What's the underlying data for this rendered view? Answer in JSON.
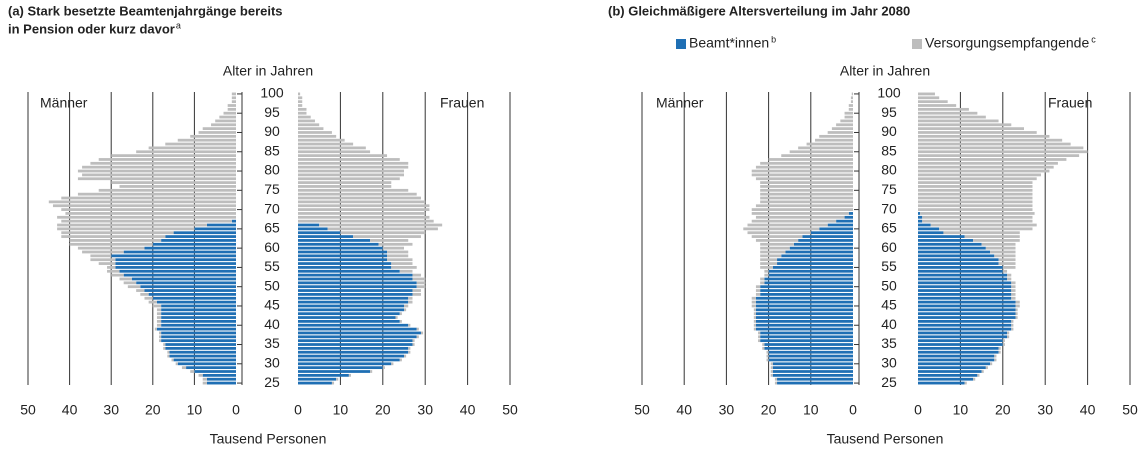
{
  "chart_data": [
    {
      "type": "pyramid",
      "title": [
        "(a) Stark besetzte Beamtenjahrgänge bereits",
        "in Pension oder kurz davor"
      ],
      "title_note": "a",
      "y_label": "Alter in Jahren",
      "x_label": "Tausend Personen",
      "men_label": "Männer",
      "women_label": "Frauen",
      "y": [
        25,
        26,
        27,
        28,
        29,
        30,
        31,
        32,
        33,
        34,
        35,
        36,
        37,
        38,
        39,
        40,
        41,
        42,
        43,
        44,
        45,
        46,
        47,
        48,
        49,
        50,
        51,
        52,
        53,
        54,
        55,
        56,
        57,
        58,
        59,
        60,
        61,
        62,
        63,
        64,
        65,
        66,
        67,
        68,
        69,
        70,
        71,
        72,
        73,
        74,
        75,
        76,
        77,
        78,
        79,
        80,
        81,
        82,
        83,
        84,
        85,
        86,
        87,
        88,
        89,
        90,
        91,
        92,
        93,
        94,
        95,
        96,
        97,
        98,
        99,
        100
      ],
      "ylim": [
        24.5,
        100.5
      ],
      "yticks": [
        25,
        30,
        35,
        40,
        45,
        50,
        55,
        60,
        65,
        70,
        75,
        80,
        85,
        90,
        95,
        100
      ],
      "xlim": [
        0,
        50
      ],
      "xticks": [
        0,
        10,
        20,
        30,
        40,
        50
      ],
      "series": [
        {
          "color": "#1f6fb4",
          "men": [
            7,
            7,
            8,
            10,
            12,
            14,
            15,
            16,
            16,
            17,
            17,
            18,
            18,
            18,
            19,
            18,
            18,
            18,
            18,
            18,
            18,
            19,
            20,
            21,
            22,
            23,
            24,
            25,
            27,
            28,
            29,
            29,
            29,
            30,
            27,
            22,
            20,
            18,
            17,
            15,
            10,
            7,
            1,
            0,
            0,
            0,
            0,
            0,
            0,
            0,
            0,
            0,
            0,
            0,
            0,
            0,
            0,
            0,
            0,
            0,
            0,
            0,
            0,
            0,
            0,
            0,
            0,
            0,
            0,
            0,
            0,
            0,
            0,
            0,
            0,
            0
          ],
          "women": [
            8,
            9,
            12,
            17,
            20,
            22,
            24,
            25,
            26,
            26,
            27,
            27,
            28,
            29,
            28,
            26,
            24,
            23,
            24,
            25,
            25,
            26,
            26,
            27,
            27,
            28,
            28,
            27,
            27,
            24,
            22,
            22,
            21,
            21,
            21,
            20,
            19,
            17,
            13,
            10,
            7,
            5,
            0,
            0,
            0,
            0,
            0,
            0,
            0,
            0,
            0,
            0,
            0,
            0,
            0,
            0,
            0,
            0,
            0,
            0,
            0,
            0,
            0,
            0,
            0,
            0,
            0,
            0,
            0,
            0,
            0,
            0,
            0,
            0,
            0,
            0
          ]
        },
        {
          "color": "#bdbdbd",
          "men": [
            1,
            1,
            1,
            1,
            1,
            0.5,
            0.5,
            0.5,
            0.5,
            0.5,
            0.5,
            0.5,
            0.5,
            0.5,
            0.5,
            1,
            1,
            1,
            1,
            1,
            2,
            2,
            2,
            2,
            2,
            3,
            3,
            3,
            3,
            3,
            2,
            4,
            6,
            5,
            10,
            16,
            20,
            22,
            25,
            27,
            33,
            36,
            41,
            43,
            41,
            42,
            44,
            45,
            42,
            38,
            33,
            28,
            30,
            38,
            37,
            38,
            37,
            35,
            33,
            30,
            24,
            21,
            17,
            14,
            11,
            9,
            8,
            6,
            5,
            4,
            3,
            2,
            2,
            1,
            1,
            1
          ],
          "women": [
            0.5,
            0.5,
            0.5,
            0.5,
            0.5,
            0.5,
            0.5,
            0.5,
            0.5,
            0.5,
            0.5,
            0.5,
            0.5,
            0.5,
            0.5,
            0.5,
            0.5,
            0.5,
            0.5,
            0.5,
            1,
            1,
            1,
            2,
            2,
            2,
            2,
            3,
            2,
            3,
            6,
            5,
            6,
            5,
            5,
            5,
            8,
            9,
            16,
            20,
            26,
            29,
            32,
            31,
            30,
            31,
            31,
            30,
            29,
            28,
            26,
            22,
            22,
            24,
            25,
            25,
            26,
            26,
            24,
            21,
            17,
            16,
            13,
            11,
            9,
            8,
            6,
            5,
            4,
            3,
            2,
            2,
            1,
            1,
            1,
            0.5
          ]
        }
      ]
    },
    {
      "type": "pyramid",
      "title": [
        "(b) Gleichmäßigere Altersverteilung im Jahr 2080"
      ],
      "y_label": "Alter in Jahren",
      "x_label": "Tausend Personen",
      "men_label": "Männer",
      "women_label": "Frauen",
      "y": [
        25,
        26,
        27,
        28,
        29,
        30,
        31,
        32,
        33,
        34,
        35,
        36,
        37,
        38,
        39,
        40,
        41,
        42,
        43,
        44,
        45,
        46,
        47,
        48,
        49,
        50,
        51,
        52,
        53,
        54,
        55,
        56,
        57,
        58,
        59,
        60,
        61,
        62,
        63,
        64,
        65,
        66,
        67,
        68,
        69,
        70,
        71,
        72,
        73,
        74,
        75,
        76,
        77,
        78,
        79,
        80,
        81,
        82,
        83,
        84,
        85,
        86,
        87,
        88,
        89,
        90,
        91,
        92,
        93,
        94,
        95,
        96,
        97,
        98,
        99,
        100
      ],
      "ylim": [
        24.5,
        100.5
      ],
      "yticks": [
        25,
        30,
        35,
        40,
        45,
        50,
        55,
        60,
        65,
        70,
        75,
        80,
        85,
        90,
        95,
        100
      ],
      "xlim": [
        0,
        50
      ],
      "xticks": [
        0,
        10,
        20,
        30,
        40,
        50
      ],
      "series": [
        {
          "name": "Beamt*innen",
          "note": "b",
          "color": "#1f6fb4",
          "men": [
            18,
            18,
            19,
            19,
            19,
            19,
            20,
            20,
            20,
            21,
            21,
            22,
            22,
            22,
            23,
            23,
            23,
            23,
            23,
            23,
            23,
            23,
            23,
            22,
            22,
            22,
            21,
            21,
            20,
            20,
            19,
            18,
            18,
            17,
            16,
            15,
            14,
            13,
            12,
            10,
            8,
            6,
            4,
            2,
            1,
            0,
            0,
            0,
            0,
            0,
            0,
            0,
            0,
            0,
            0,
            0,
            0,
            0,
            0,
            0,
            0,
            0,
            0,
            0,
            0,
            0,
            0,
            0,
            0,
            0,
            0,
            0,
            0,
            0,
            0,
            0
          ],
          "women": [
            11,
            13,
            14,
            15,
            16,
            17,
            18,
            18,
            19,
            19,
            20,
            20,
            21,
            21,
            22,
            22,
            22,
            23,
            23,
            23,
            23,
            23,
            22,
            22,
            22,
            22,
            22,
            21,
            21,
            20,
            20,
            19,
            19,
            18,
            17,
            16,
            15,
            13,
            11,
            6,
            5,
            3,
            1,
            1,
            0.5,
            0,
            0,
            0,
            0,
            0,
            0,
            0,
            0,
            0,
            0,
            0,
            0,
            0,
            0,
            0,
            0,
            0,
            0,
            0,
            0,
            0,
            0,
            0,
            0,
            0,
            0,
            0,
            0,
            0,
            0,
            0
          ]
        },
        {
          "name": "Versorgungsempfangende",
          "note": "c",
          "color": "#bdbdbd",
          "men": [
            0.5,
            0.5,
            0.5,
            0.5,
            0.5,
            0.5,
            0.5,
            0.5,
            0.5,
            0.5,
            0.5,
            0.5,
            0.5,
            0.5,
            0.5,
            0.5,
            0.5,
            0.5,
            0.5,
            0.5,
            1,
            1,
            1,
            1,
            1,
            1,
            1,
            1,
            1,
            1,
            3,
            4,
            4,
            5,
            6,
            7,
            8,
            10,
            12,
            15,
            18,
            19,
            20,
            21,
            23,
            24,
            23,
            22,
            22,
            22,
            22,
            22,
            22,
            23,
            24,
            24,
            23,
            22,
            20,
            17,
            15,
            13,
            11,
            9,
            8,
            6,
            5,
            4,
            3,
            2,
            2,
            1,
            1,
            0.5,
            0.5,
            0.3
          ],
          "women": [
            0.5,
            0.5,
            0.5,
            0.5,
            0.5,
            0.5,
            0.5,
            0.5,
            0.5,
            0.5,
            0.5,
            0.5,
            0.5,
            0.5,
            0.5,
            0.5,
            0.5,
            0.5,
            0.5,
            0.5,
            1,
            1,
            1,
            1,
            1,
            1,
            1,
            1,
            1,
            1,
            3,
            4,
            4,
            5,
            6,
            7,
            8,
            11,
            13,
            18,
            22,
            25,
            26,
            26,
            27,
            27,
            27,
            27,
            27,
            27,
            27,
            27,
            27,
            28,
            29,
            31,
            32,
            33,
            35,
            38,
            40,
            39,
            36,
            34,
            31,
            28,
            25,
            22,
            19,
            16,
            14,
            12,
            9,
            7,
            5,
            4
          ]
        }
      ]
    }
  ]
}
